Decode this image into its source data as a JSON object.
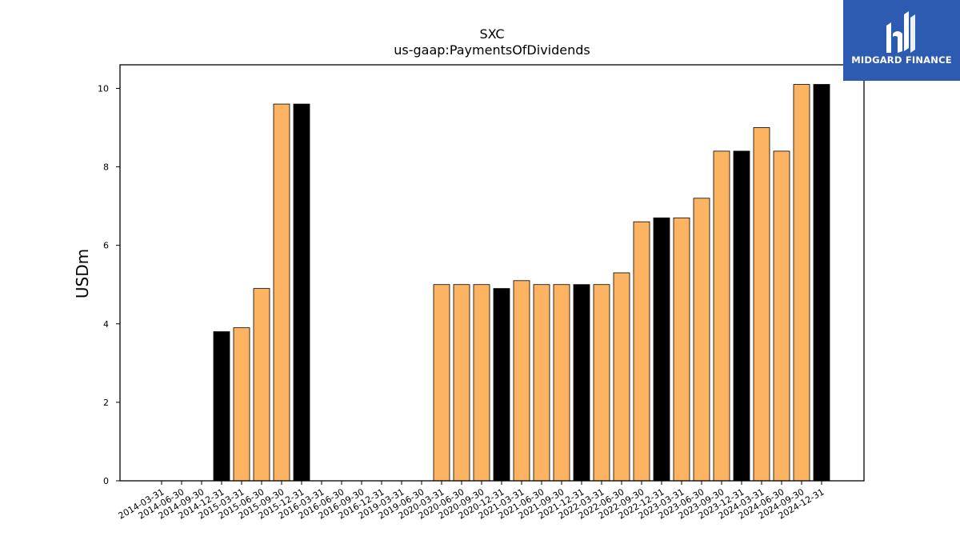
{
  "brand": {
    "name": "MIDGARD FINANCE",
    "color": "#2d5bb2"
  },
  "chart_data": {
    "type": "bar",
    "title": "SXC",
    "subtitle": "us-gaap:PaymentsOfDividends",
    "xlabel": "",
    "ylabel": "USDm",
    "ylim": [
      0,
      10.6
    ],
    "yticks": [
      0,
      2,
      4,
      6,
      8,
      10
    ],
    "grid": false,
    "colors": {
      "quarterly": "#fdb462",
      "annual": "#000000",
      "edge": "#000000"
    },
    "categories": [
      "2014-03-31",
      "2014-06-30",
      "2014-09-30",
      "2014-12-31",
      "2015-03-31",
      "2015-06-30",
      "2015-09-30",
      "2015-12-31",
      "2016-03-31",
      "2016-06-30",
      "2016-09-30",
      "2016-12-31",
      "2019-03-31",
      "2019-06-30",
      "2020-03-31",
      "2020-06-30",
      "2020-09-30",
      "2020-12-31",
      "2021-03-31",
      "2021-06-30",
      "2021-09-30",
      "2021-12-31",
      "2022-03-31",
      "2022-06-30",
      "2022-09-30",
      "2022-12-31",
      "2023-03-31",
      "2023-06-30",
      "2023-09-30",
      "2023-12-31",
      "2024-03-31",
      "2024-06-30",
      "2024-09-30",
      "2024-12-31"
    ],
    "values": [
      0,
      0,
      0,
      3.8,
      3.9,
      4.9,
      9.6,
      9.6,
      0,
      0,
      0,
      0,
      0,
      0,
      5.0,
      5.0,
      5.0,
      4.9,
      5.1,
      5.0,
      5.0,
      5.0,
      5.0,
      5.3,
      6.6,
      6.7,
      6.7,
      7.2,
      8.4,
      8.4,
      9.0,
      8.4,
      10.1,
      10.1
    ],
    "annual": [
      false,
      false,
      false,
      true,
      false,
      false,
      false,
      true,
      false,
      false,
      false,
      false,
      false,
      false,
      false,
      false,
      false,
      true,
      false,
      false,
      false,
      true,
      false,
      false,
      false,
      true,
      false,
      false,
      false,
      true,
      false,
      false,
      false,
      true
    ]
  }
}
